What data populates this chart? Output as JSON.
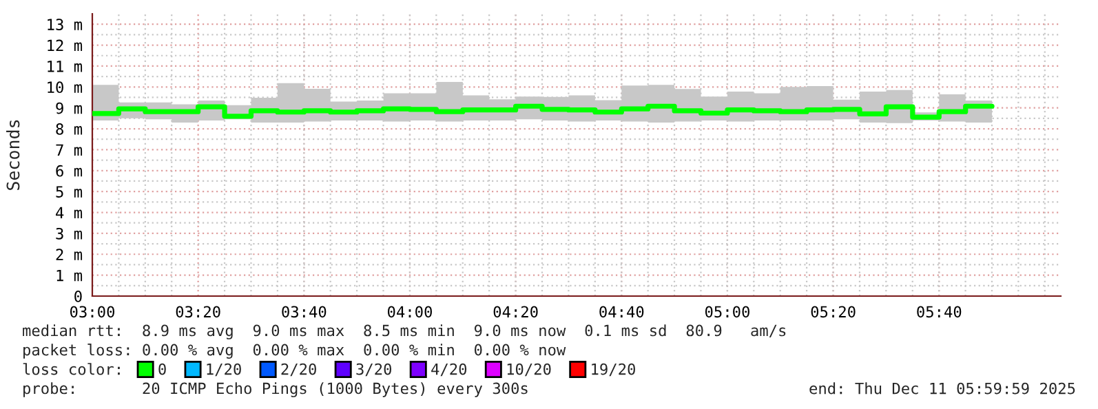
{
  "chart_data": {
    "type": "step",
    "ylabel": "Seconds",
    "x": [
      3.0,
      3.0833,
      3.1667,
      3.25,
      3.3333,
      3.4167,
      3.5,
      3.5833,
      3.6667,
      3.75,
      3.8333,
      3.9167,
      4.0,
      4.0833,
      4.1667,
      4.25,
      4.3333,
      4.4167,
      4.5,
      4.5833,
      4.6667,
      4.75,
      4.8333,
      4.9167,
      5.0,
      5.0833,
      5.1667,
      5.25,
      5.3333,
      5.4167,
      5.5,
      5.5833,
      5.6667,
      5.75,
      5.8333
    ],
    "series": [
      {
        "name": "0",
        "color": "#00ff00",
        "values": [
          8.73,
          8.95,
          8.82,
          8.82,
          9.05,
          8.6,
          8.86,
          8.8,
          8.86,
          8.8,
          8.86,
          8.95,
          8.93,
          8.82,
          8.9,
          8.9,
          9.08,
          8.93,
          8.9,
          8.8,
          8.95,
          9.08,
          8.86,
          8.75,
          8.9,
          8.86,
          8.82,
          8.9,
          8.93,
          8.71,
          9.05,
          8.56,
          8.82,
          9.08,
          9.08
        ],
        "upper": [
          10.1,
          9.26,
          9.26,
          9.17,
          9.35,
          9.13,
          9.48,
          10.18,
          9.91,
          9.3,
          9.35,
          9.7,
          9.7,
          10.24,
          9.6,
          9.41,
          9.54,
          9.52,
          9.6,
          9.37,
          10.07,
          10.1,
          9.9,
          9.54,
          9.78,
          9.7,
          10.0,
          10.04,
          9.39,
          9.78,
          9.85,
          8.78,
          9.65,
          9.35,
          9.35
        ],
        "lower": [
          8.4,
          8.5,
          8.45,
          8.3,
          8.4,
          8.45,
          8.3,
          8.3,
          8.35,
          8.4,
          8.4,
          8.35,
          8.4,
          8.35,
          8.4,
          8.4,
          8.45,
          8.4,
          8.35,
          8.4,
          8.35,
          8.3,
          8.35,
          8.4,
          8.35,
          8.4,
          8.4,
          8.4,
          8.45,
          8.3,
          8.27,
          8.4,
          8.35,
          8.3,
          8.3
        ]
      },
      {
        "name": "1/20",
        "color": "#00b8ff",
        "values": [
          null,
          null,
          null,
          null,
          null,
          null,
          null,
          null,
          null,
          null,
          null,
          null,
          null,
          null,
          null,
          null,
          null,
          null,
          null,
          null,
          null,
          null,
          null,
          null,
          null,
          null,
          null,
          null,
          null,
          null,
          null,
          null,
          null,
          null,
          null
        ]
      },
      {
        "name": "2/20",
        "color": "#0059ff",
        "values": [
          null,
          null,
          null,
          null,
          null,
          null,
          null,
          null,
          null,
          null,
          null,
          null,
          null,
          null,
          null,
          null,
          null,
          null,
          null,
          null,
          null,
          null,
          null,
          null,
          null,
          null,
          null,
          null,
          null,
          null,
          null,
          null,
          null,
          null,
          null
        ]
      },
      {
        "name": "3/20",
        "color": "#5e00ff",
        "values": [
          null,
          null,
          null,
          null,
          null,
          null,
          null,
          null,
          null,
          null,
          null,
          null,
          null,
          null,
          null,
          null,
          null,
          null,
          null,
          null,
          null,
          null,
          null,
          null,
          null,
          null,
          null,
          null,
          null,
          null,
          null,
          null,
          null,
          null,
          null
        ]
      },
      {
        "name": "4/20",
        "color": "#7e00ff",
        "values": [
          null,
          null,
          null,
          null,
          null,
          null,
          null,
          null,
          null,
          null,
          null,
          null,
          null,
          null,
          null,
          null,
          null,
          null,
          null,
          null,
          null,
          null,
          null,
          null,
          null,
          null,
          null,
          null,
          null,
          null,
          null,
          null,
          null,
          null,
          null
        ]
      },
      {
        "name": "10/20",
        "color": "#dd00ff",
        "values": [
          null,
          null,
          null,
          null,
          null,
          null,
          null,
          null,
          null,
          null,
          null,
          null,
          null,
          null,
          null,
          null,
          null,
          null,
          null,
          null,
          null,
          null,
          null,
          null,
          null,
          null,
          null,
          null,
          null,
          null,
          null,
          null,
          null,
          null,
          null
        ]
      },
      {
        "name": "19/20",
        "color": "#ff0000",
        "values": [
          null,
          null,
          null,
          null,
          null,
          null,
          null,
          null,
          null,
          null,
          null,
          null,
          null,
          null,
          null,
          null,
          null,
          null,
          null,
          null,
          null,
          null,
          null,
          null,
          null,
          null,
          null,
          null,
          null,
          null,
          null,
          null,
          null,
          null,
          null
        ]
      }
    ],
    "xlim": [
      3.0,
      6.05
    ],
    "xticks": [
      {
        "value": 3.0,
        "label": "03:00"
      },
      {
        "value": 3.3333,
        "label": "03:20"
      },
      {
        "value": 3.6667,
        "label": "03:40"
      },
      {
        "value": 4.0,
        "label": "04:00"
      },
      {
        "value": 4.3333,
        "label": "04:20"
      },
      {
        "value": 4.6667,
        "label": "04:40"
      },
      {
        "value": 5.0,
        "label": "05:00"
      },
      {
        "value": 5.3333,
        "label": "05:20"
      },
      {
        "value": 5.6667,
        "label": "05:40"
      }
    ],
    "ylim": [
      0,
      13.5
    ],
    "yticks": [
      {
        "value": 0,
        "label": "0"
      },
      {
        "value": 1,
        "label": "1 m"
      },
      {
        "value": 2,
        "label": "2 m"
      },
      {
        "value": 3,
        "label": "3 m"
      },
      {
        "value": 4,
        "label": "4 m"
      },
      {
        "value": 5,
        "label": "5 m"
      },
      {
        "value": 6,
        "label": "6 m"
      },
      {
        "value": 7,
        "label": "7 m"
      },
      {
        "value": 8,
        "label": "8 m"
      },
      {
        "value": 9,
        "label": "9 m"
      },
      {
        "value": 10,
        "label": "10 m"
      },
      {
        "value": 11,
        "label": "11 m"
      },
      {
        "value": 12,
        "label": "12 m"
      },
      {
        "value": 13,
        "label": "13 m"
      }
    ],
    "grid": true,
    "legend": "bottom",
    "annotations": [
      "median rtt:  8.9 ms avg  9.0 ms max  8.5 ms min  9.0 ms now  0.1 ms sd  80.9   am/s",
      "packet loss: 0.00 % avg  0.00 % max  0.00 % min  0.00 % now",
      "loss color:",
      "probe:       20 ICMP Echo Pings (1000 Bytes) every 300s",
      "end: Thu Dec 11 05:59:59 2025"
    ]
  }
}
